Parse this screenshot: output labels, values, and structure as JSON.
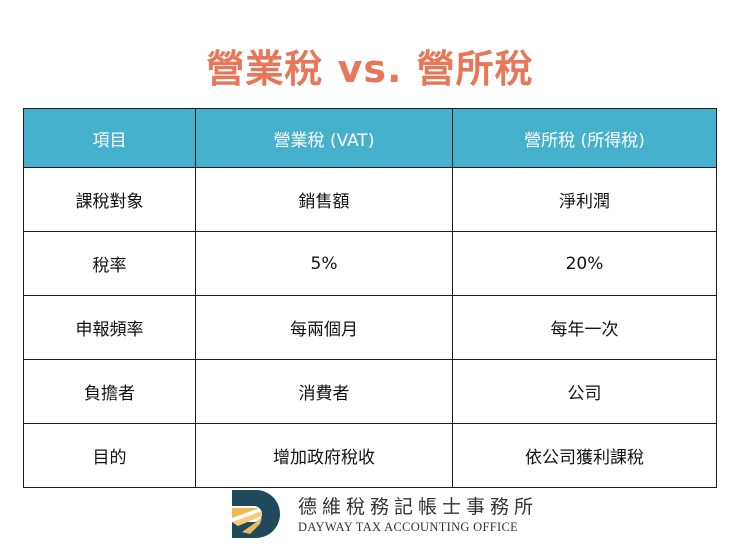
{
  "title": "營業稅 vs. 營所稅",
  "table": {
    "headers": [
      "項目",
      "營業稅 (VAT)",
      "營所稅 (所得稅)"
    ],
    "rows": [
      [
        "課稅對象",
        "銷售額",
        "淨利潤"
      ],
      [
        "稅率",
        "5%",
        "20%"
      ],
      [
        "申報頻率",
        "每兩個月",
        "每年一次"
      ],
      [
        "負擔者",
        "消費者",
        "公司"
      ],
      [
        "目的",
        "增加政府稅收",
        "依公司獲利課稅"
      ]
    ]
  },
  "colors": {
    "title": "#e8775a",
    "header_bg": "#45b1cd",
    "logo_navy": "#1f4a5c",
    "logo_gold": "#f0b957"
  },
  "logo": {
    "name_zh": "德維稅務記帳士事務所",
    "name_en": "DAYWAY TAX ACCOUNTING OFFICE"
  }
}
